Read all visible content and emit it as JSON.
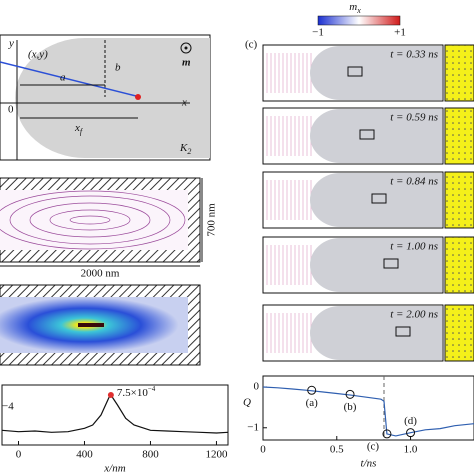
{
  "figure": {
    "panel_a": {
      "y_axis": "y",
      "point": "(x,y)",
      "b": "b",
      "a": "a",
      "origin": "0",
      "xf": "x",
      "xf_sub": "f",
      "x_axis": "x",
      "m": "m",
      "K": "K",
      "K_sub": "2"
    },
    "panel_b": {
      "height": "700 nm",
      "width": "2000 nm"
    },
    "panel_c": {
      "label": "(c)",
      "colorbar_title": "m",
      "colorbar_sub": "x",
      "cb_min": "−1",
      "cb_max": "+1",
      "times": [
        "t = 0.33 ns",
        "t = 0.59 ns",
        "t = 0.84 ns",
        "t = 1.00 ns",
        "t = 2.00 ns"
      ]
    },
    "partial_label": "−4"
  },
  "chart_data": [
    {
      "type": "line",
      "x_label": "x/nm",
      "xlim": [
        -100,
        1270
      ],
      "ylim": [
        0,
        0.0009
      ],
      "xticks": [
        0,
        400,
        800,
        1200
      ],
      "color": "#111111",
      "x": [
        -100,
        0,
        100,
        200,
        300,
        400,
        450,
        500,
        550,
        560,
        600,
        650,
        700,
        800,
        900,
        1000,
        1100,
        1200,
        1270
      ],
      "values": [
        0.00022,
        0.0002,
        0.00021,
        0.00019,
        0.0002,
        0.00025,
        0.0003,
        0.00045,
        0.00072,
        0.00075,
        0.0006,
        0.0004,
        0.0003,
        0.00022,
        0.00021,
        0.0002,
        0.00019,
        0.00018,
        0.00019
      ],
      "annotations": [
        {
          "label": "7.5×10",
          "sup": "−4",
          "x": 560,
          "y": 0.00075
        }
      ]
    },
    {
      "type": "line",
      "x_label": "t/ns",
      "y_label": "Q",
      "xlim": [
        0,
        1.43
      ],
      "ylim": [
        -1.3,
        0.27
      ],
      "color": "#2f5fb0",
      "xticks": [
        0,
        0.5,
        {
          "value": 1,
          "label": "1.0"
        }
      ],
      "yticks": [
        0,
        {
          "value": -1,
          "label": "−1"
        }
      ],
      "vline": 0.82,
      "x": [
        0,
        0.1,
        0.2,
        0.3,
        0.4,
        0.5,
        0.6,
        0.7,
        0.8,
        0.82,
        0.84,
        0.9,
        1.0,
        1.1,
        1.2,
        1.3,
        1.43
      ],
      "values": [
        0,
        -0.02,
        -0.05,
        -0.08,
        -0.12,
        -0.16,
        -0.2,
        -0.25,
        -0.3,
        -0.35,
        -1.15,
        -1.2,
        -1.12,
        -1.05,
        -1.02,
        -0.95,
        -0.9
      ],
      "annotations": [
        {
          "label": "(a)",
          "x": 0.33,
          "y": -0.08
        },
        {
          "label": "(b)",
          "x": 0.59,
          "y": -0.18
        },
        {
          "label": "(c)",
          "x": 0.84,
          "y": -1.15
        },
        {
          "label": "(d)",
          "x": 1.0,
          "y": -1.12
        }
      ]
    }
  ]
}
